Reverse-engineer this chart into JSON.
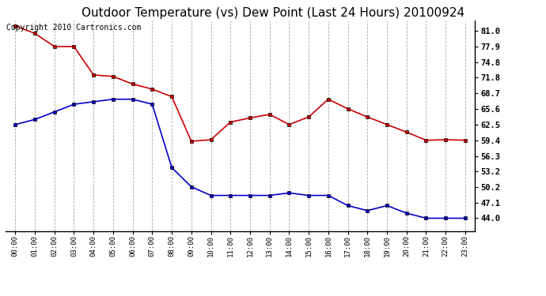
{
  "title": "Outdoor Temperature (vs) Dew Point (Last 24 Hours) 20100924",
  "copyright_text": "Copyright 2010 Cartronics.com",
  "x_labels": [
    "00:00",
    "01:00",
    "02:00",
    "03:00",
    "04:00",
    "05:00",
    "06:00",
    "07:00",
    "08:00",
    "09:00",
    "10:00",
    "11:00",
    "12:00",
    "13:00",
    "14:00",
    "15:00",
    "16:00",
    "17:00",
    "18:00",
    "19:00",
    "20:00",
    "21:00",
    "22:00",
    "23:00"
  ],
  "temp_data": [
    82.0,
    80.5,
    77.9,
    77.9,
    72.3,
    72.0,
    70.5,
    69.5,
    68.0,
    59.2,
    59.5,
    63.0,
    63.8,
    64.5,
    62.5,
    64.0,
    67.5,
    65.6,
    64.0,
    62.5,
    61.0,
    59.4,
    59.5,
    59.4
  ],
  "dew_data": [
    62.5,
    63.5,
    65.0,
    66.5,
    67.0,
    67.5,
    67.5,
    66.5,
    54.0,
    50.2,
    48.5,
    48.5,
    48.5,
    48.5,
    49.0,
    48.5,
    48.5,
    46.5,
    45.5,
    46.5,
    45.0,
    44.0,
    44.0,
    44.0
  ],
  "temp_color": "#cc0000",
  "dew_color": "#0000cc",
  "marker_color": "#000000",
  "background_color": "#ffffff",
  "grid_color": "#aaaaaa",
  "y_ticks": [
    44.0,
    47.1,
    50.2,
    53.2,
    56.3,
    59.4,
    62.5,
    65.6,
    68.7,
    71.8,
    74.8,
    77.9,
    81.0
  ],
  "ylim": [
    41.5,
    83.0
  ],
  "title_fontsize": 11,
  "copyright_fontsize": 7
}
